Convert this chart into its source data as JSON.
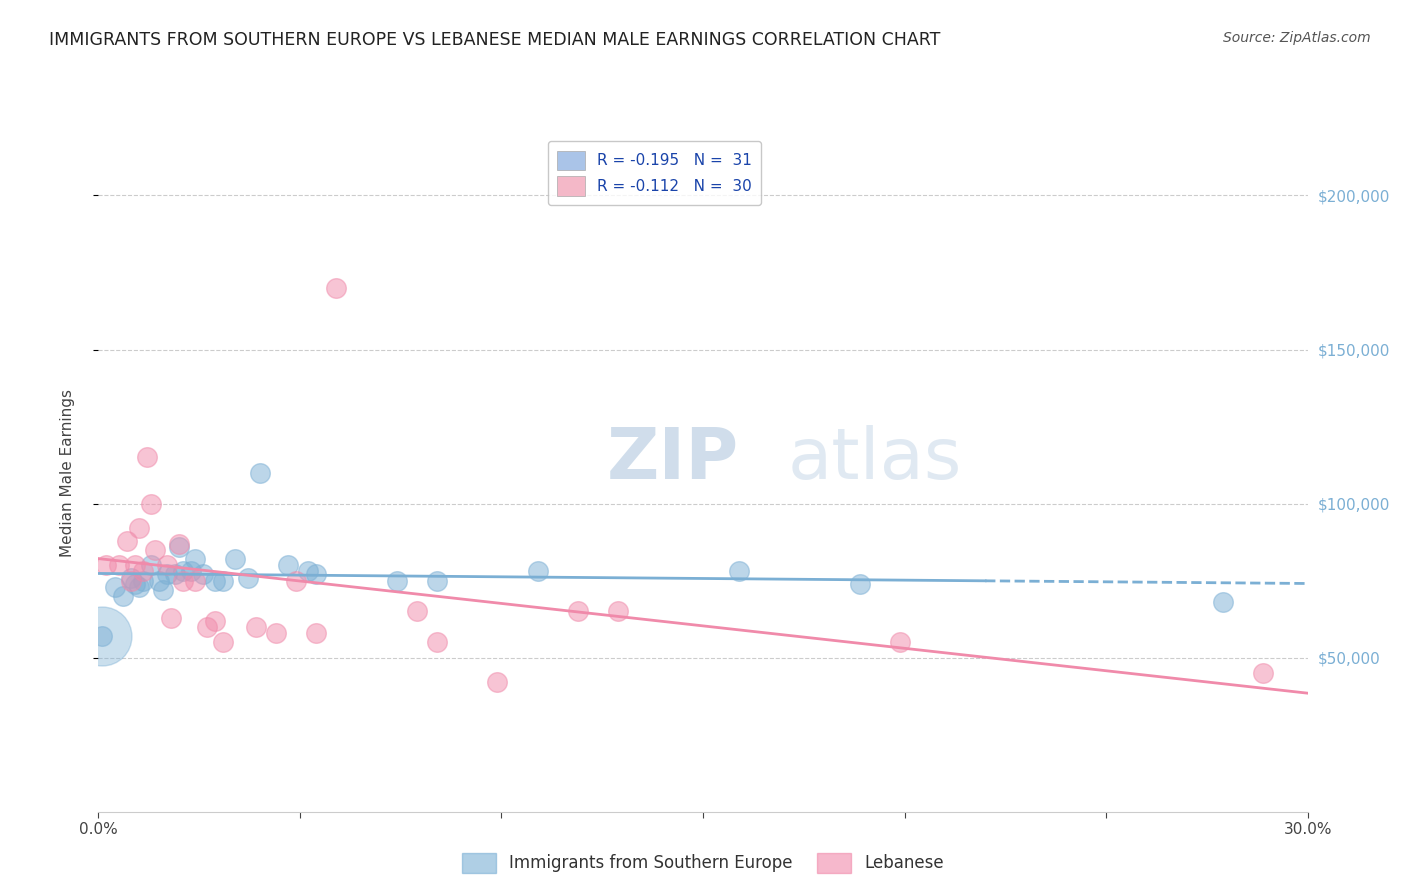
{
  "title": "IMMIGRANTS FROM SOUTHERN EUROPE VS LEBANESE MEDIAN MALE EARNINGS CORRELATION CHART",
  "source": "Source: ZipAtlas.com",
  "ylabel": "Median Male Earnings",
  "xlim": [
    0.0,
    0.3
  ],
  "ylim": [
    0,
    220000
  ],
  "right_yticks": [
    50000,
    100000,
    150000,
    200000
  ],
  "right_yticklabels": [
    "$50,000",
    "$100,000",
    "$150,000",
    "$200,000"
  ],
  "legend_entries": [
    {
      "label": "R = -0.195   N =  31",
      "color": "#aac4e8"
    },
    {
      "label": "R = -0.112   N =  30",
      "color": "#f4b8c8"
    }
  ],
  "legend_bottom": [
    "Immigrants from Southern Europe",
    "Lebanese"
  ],
  "watermark_zip": "ZIP",
  "watermark_atlas": "atlas",
  "blue_color": "#7bafd4",
  "pink_color": "#f08aaa",
  "blue_scatter": [
    [
      0.001,
      57000
    ],
    [
      0.004,
      73000
    ],
    [
      0.006,
      70000
    ],
    [
      0.008,
      76000
    ],
    [
      0.009,
      74000
    ],
    [
      0.01,
      73000
    ],
    [
      0.011,
      75000
    ],
    [
      0.013,
      80000
    ],
    [
      0.015,
      75000
    ],
    [
      0.016,
      72000
    ],
    [
      0.017,
      77000
    ],
    [
      0.019,
      77000
    ],
    [
      0.02,
      86000
    ],
    [
      0.021,
      78000
    ],
    [
      0.023,
      78000
    ],
    [
      0.024,
      82000
    ],
    [
      0.026,
      77000
    ],
    [
      0.029,
      75000
    ],
    [
      0.031,
      75000
    ],
    [
      0.034,
      82000
    ],
    [
      0.037,
      76000
    ],
    [
      0.04,
      110000
    ],
    [
      0.047,
      80000
    ],
    [
      0.052,
      78000
    ],
    [
      0.054,
      77000
    ],
    [
      0.074,
      75000
    ],
    [
      0.084,
      75000
    ],
    [
      0.109,
      78000
    ],
    [
      0.159,
      78000
    ],
    [
      0.189,
      74000
    ],
    [
      0.279,
      68000
    ]
  ],
  "pink_scatter": [
    [
      0.002,
      80000
    ],
    [
      0.005,
      80000
    ],
    [
      0.007,
      88000
    ],
    [
      0.008,
      75000
    ],
    [
      0.009,
      80000
    ],
    [
      0.01,
      92000
    ],
    [
      0.011,
      78000
    ],
    [
      0.012,
      115000
    ],
    [
      0.013,
      100000
    ],
    [
      0.014,
      85000
    ],
    [
      0.017,
      80000
    ],
    [
      0.018,
      63000
    ],
    [
      0.02,
      87000
    ],
    [
      0.021,
      75000
    ],
    [
      0.024,
      75000
    ],
    [
      0.027,
      60000
    ],
    [
      0.029,
      62000
    ],
    [
      0.031,
      55000
    ],
    [
      0.039,
      60000
    ],
    [
      0.044,
      58000
    ],
    [
      0.049,
      75000
    ],
    [
      0.054,
      58000
    ],
    [
      0.059,
      170000
    ],
    [
      0.079,
      65000
    ],
    [
      0.084,
      55000
    ],
    [
      0.099,
      42000
    ],
    [
      0.119,
      65000
    ],
    [
      0.129,
      65000
    ],
    [
      0.199,
      55000
    ],
    [
      0.289,
      45000
    ]
  ],
  "grid_color": "#cccccc",
  "background_color": "#ffffff",
  "axis_color": "#cccccc",
  "dot_size": 200
}
